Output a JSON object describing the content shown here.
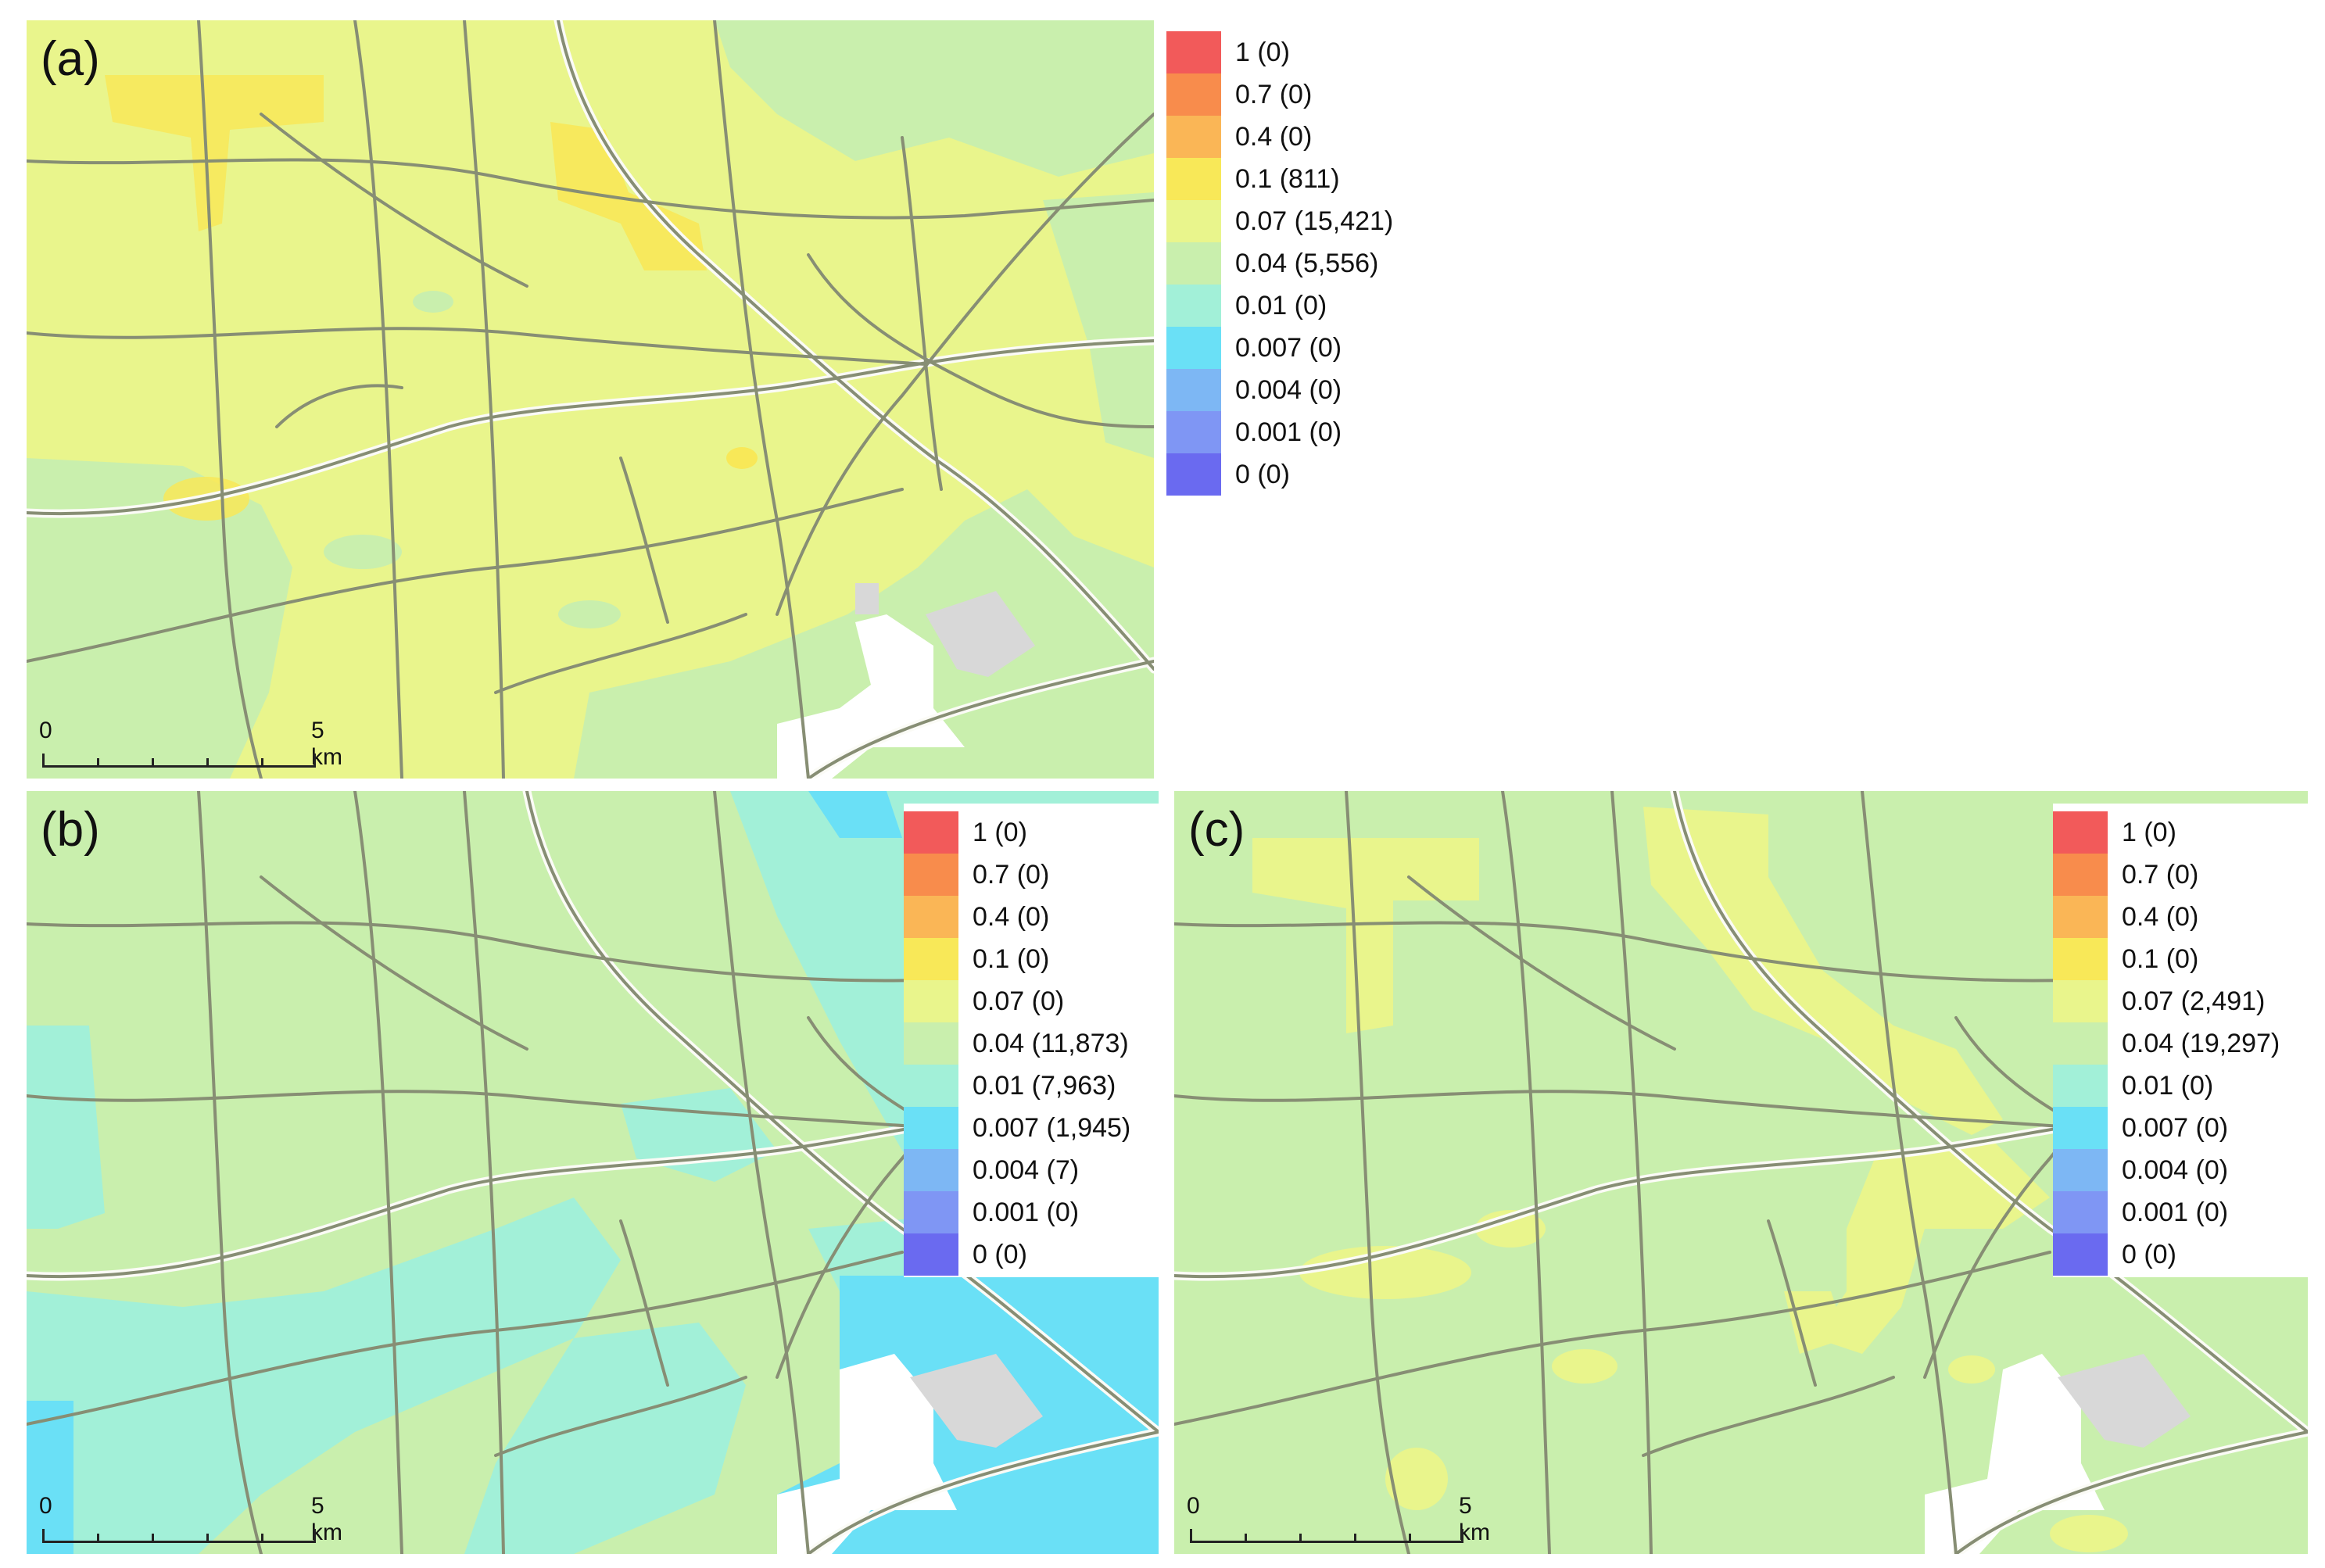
{
  "class_colors": [
    "#f25a5a",
    "#f88c4c",
    "#fab656",
    "#f8e858",
    "#e9f58c",
    "#c9efad",
    "#a2f0d8",
    "#6ae0f6",
    "#7db7f4",
    "#7f96f4",
    "#6a6af0"
  ],
  "colors": {
    "road": "#878e74",
    "road_casing": "#fbfbf6",
    "water": "#ffffff",
    "built": "#d8d8d8"
  },
  "panels": [
    {
      "label": "(a)",
      "legend": [
        "1 (0)",
        "0.7 (0)",
        "0.4 (0)",
        "0.1 (811)",
        "0.07 (15,421)",
        "0.04 (5,556)",
        "0.01 (0)",
        "0.007 (0)",
        "0.004 (0)",
        "0.001 (0)",
        "0 (0)"
      ],
      "scale": {
        "start": "0",
        "end": "5 km"
      }
    },
    {
      "label": "(b)",
      "legend": [
        "1 (0)",
        "0.7 (0)",
        "0.4 (0)",
        "0.1 (0)",
        "0.07 (0)",
        "0.04 (11,873)",
        "0.01 (7,963)",
        "0.007 (1,945)",
        "0.004 (7)",
        "0.001 (0)",
        "0 (0)"
      ],
      "scale": {
        "start": "0",
        "end": "5 km"
      }
    },
    {
      "label": "(c)",
      "legend": [
        "1 (0)",
        "0.7 (0)",
        "0.4 (0)",
        "0.1 (0)",
        "0.07 (2,491)",
        "0.04 (19,297)",
        "0.01 (0)",
        "0.007 (0)",
        "0.004 (0)",
        "0.001 (0)",
        "0 (0)"
      ],
      "scale": {
        "start": "0",
        "end": "5 km"
      }
    }
  ]
}
